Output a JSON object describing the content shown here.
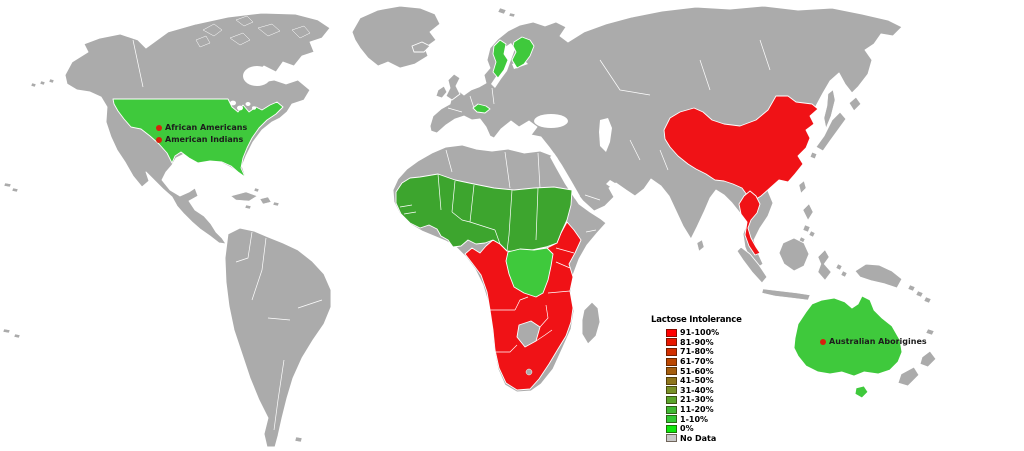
{
  "colors": {
    "ocean": "#ffffff",
    "land_no_data": "#ababab",
    "border": "#ffffff",
    "red": "#f01216",
    "bright_green": "#3fc93c",
    "mid_green": "#3da52e",
    "annotation_dot": "#d8200d",
    "annotation_text": "#1c1c1c"
  },
  "legend": {
    "title": "Lactose Intolerance",
    "entries": [
      {
        "label": "91-100%",
        "color": "#ff0000"
      },
      {
        "label": "81-90%",
        "color": "#e81700"
      },
      {
        "label": "71-80%",
        "color": "#d22f00"
      },
      {
        "label": "61-70%",
        "color": "#bb4600"
      },
      {
        "label": "51-60%",
        "color": "#a55e0e"
      },
      {
        "label": "41-50%",
        "color": "#8e751b"
      },
      {
        "label": "31-40%",
        "color": "#789026"
      },
      {
        "label": "21-30%",
        "color": "#5aa42b"
      },
      {
        "label": "11-20%",
        "color": "#3eb833"
      },
      {
        "label": "1-10%",
        "color": "#30c833"
      },
      {
        "label": "0%",
        "color": "#0ee60e"
      },
      {
        "label": "No Data",
        "color": "#c8c8c8"
      }
    ]
  },
  "annotations": [
    {
      "label": "African Americans"
    },
    {
      "label": "American Indians"
    },
    {
      "label": "Australian Aborigines"
    }
  ],
  "chart_data": {
    "type": "choropleth_map",
    "title": "Lactose Intolerance",
    "legend_bins": [
      "91-100%",
      "81-90%",
      "71-80%",
      "61-70%",
      "51-60%",
      "41-50%",
      "31-40%",
      "21-30%",
      "11-20%",
      "1-10%",
      "0%",
      "No Data"
    ],
    "regions": [
      {
        "name": "United States (contiguous)",
        "fill": "#3fc93c"
      },
      {
        "name": "Sweden",
        "fill": "#3fc93c"
      },
      {
        "name": "Finland",
        "fill": "#3fc93c"
      },
      {
        "name": "Alpine Europe (Switzerland/Austria)",
        "fill": "#3fc93c"
      },
      {
        "name": "West Africa / Sahel belt (Senegal to Sudan incl. Nigeria, Cameroon, CAR)",
        "fill": "#3da52e"
      },
      {
        "name": "DR Congo",
        "fill": "#3fc93c"
      },
      {
        "name": "Eastern & Southern Africa (Ethiopia, Kenya, Tanzania, Angola, Zambia, Zimbabwe, Mozambique, Namibia, South Africa)",
        "fill": "#f01216"
      },
      {
        "name": "China",
        "fill": "#f01216"
      },
      {
        "name": "Thailand",
        "fill": "#f01216"
      },
      {
        "name": "Australia",
        "fill": "#3fc93c"
      }
    ],
    "point_annotations": [
      "African Americans",
      "American Indians",
      "Australian Aborigines"
    ],
    "no_data_color": "#ababab"
  }
}
